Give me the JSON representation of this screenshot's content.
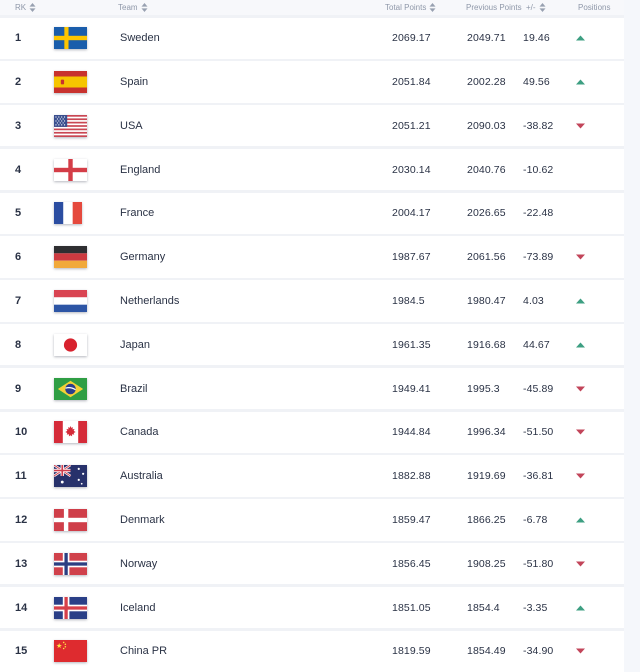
{
  "page": {
    "background": "#f0f2f6",
    "row_background": "#ffffff",
    "header_text_color": "#8f98a9",
    "body_text_color": "#2a3245",
    "up_arrow_color": "#3d9f82",
    "down_arrow_color": "#c2455a"
  },
  "table": {
    "header": [
      {
        "label": "RK",
        "sortable": true
      },
      {
        "label": "Team",
        "sortable": true
      },
      {
        "label": "Total Points",
        "sortable": true
      },
      {
        "label": "Previous Points",
        "sortable": false
      },
      {
        "label": "+/-",
        "sortable": true
      },
      {
        "label": "Positions",
        "sortable": false
      }
    ],
    "rows": [
      {
        "rank": "1",
        "team": "Sweden",
        "flag": "swe",
        "total_points": "2069.17",
        "previous_points": "2049.71",
        "change": "19.46",
        "movement": "up"
      },
      {
        "rank": "2",
        "team": "Spain",
        "flag": "esp",
        "total_points": "2051.84",
        "previous_points": "2002.28",
        "change": "49.56",
        "movement": "up"
      },
      {
        "rank": "3",
        "team": "USA",
        "flag": "usa",
        "total_points": "2051.21",
        "previous_points": "2090.03",
        "change": "-38.82",
        "movement": "down"
      },
      {
        "rank": "4",
        "team": "England",
        "flag": "eng",
        "total_points": "2030.14",
        "previous_points": "2040.76",
        "change": "-10.62",
        "movement": "none"
      },
      {
        "rank": "5",
        "team": "France",
        "flag": "fra",
        "total_points": "2004.17",
        "previous_points": "2026.65",
        "change": "-22.48",
        "movement": "none"
      },
      {
        "rank": "6",
        "team": "Germany",
        "flag": "ger",
        "total_points": "1987.67",
        "previous_points": "2061.56",
        "change": "-73.89",
        "movement": "down"
      },
      {
        "rank": "7",
        "team": "Netherlands",
        "flag": "ned",
        "total_points": "1984.5",
        "previous_points": "1980.47",
        "change": "4.03",
        "movement": "up"
      },
      {
        "rank": "8",
        "team": "Japan",
        "flag": "jpn",
        "total_points": "1961.35",
        "previous_points": "1916.68",
        "change": "44.67",
        "movement": "up"
      },
      {
        "rank": "9",
        "team": "Brazil",
        "flag": "bra",
        "total_points": "1949.41",
        "previous_points": "1995.3",
        "change": "-45.89",
        "movement": "down"
      },
      {
        "rank": "10",
        "team": "Canada",
        "flag": "can",
        "total_points": "1944.84",
        "previous_points": "1996.34",
        "change": "-51.50",
        "movement": "down"
      },
      {
        "rank": "11",
        "team": "Australia",
        "flag": "aus",
        "total_points": "1882.88",
        "previous_points": "1919.69",
        "change": "-36.81",
        "movement": "down"
      },
      {
        "rank": "12",
        "team": "Denmark",
        "flag": "den",
        "total_points": "1859.47",
        "previous_points": "1866.25",
        "change": "-6.78",
        "movement": "up"
      },
      {
        "rank": "13",
        "team": "Norway",
        "flag": "nor",
        "total_points": "1856.45",
        "previous_points": "1908.25",
        "change": "-51.80",
        "movement": "down"
      },
      {
        "rank": "14",
        "team": "Iceland",
        "flag": "isl",
        "total_points": "1851.05",
        "previous_points": "1854.4",
        "change": "-3.35",
        "movement": "up"
      },
      {
        "rank": "15",
        "team": "China PR",
        "flag": "chn",
        "total_points": "1819.59",
        "previous_points": "1854.49",
        "change": "-34.90",
        "movement": "down"
      }
    ]
  }
}
